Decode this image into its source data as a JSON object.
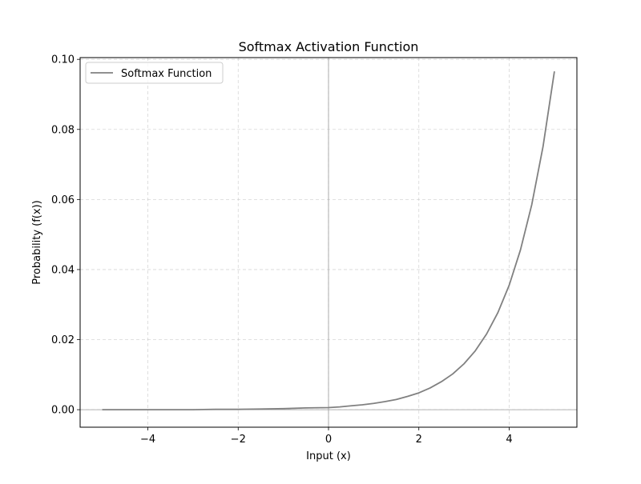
{
  "chart_data": {
    "type": "line",
    "title": "Softmax Activation Function",
    "xlabel": "Input (x)",
    "ylabel": "Probability (f(x))",
    "xlim": [
      -5.5,
      5.5
    ],
    "ylim": [
      -0.005,
      0.1005
    ],
    "x_ticks": [
      -4,
      -2,
      0,
      2,
      4
    ],
    "x_tick_labels": [
      "−4",
      "−2",
      "0",
      "2",
      "4"
    ],
    "y_ticks": [
      0.0,
      0.02,
      0.04,
      0.06,
      0.08,
      0.1
    ],
    "y_tick_labels": [
      "0.00",
      "0.02",
      "0.04",
      "0.06",
      "0.08",
      "0.10"
    ],
    "grid": true,
    "grid_style": "dashed",
    "reference_lines": {
      "x": 0,
      "y": 0
    },
    "legend_placement": "top-left",
    "series": [
      {
        "name": "Softmax Function",
        "color": "#808080",
        "x": [
          -5,
          -4.5,
          -4,
          -3.5,
          -3,
          -2.5,
          -2,
          -1.5,
          -1,
          -0.5,
          0,
          0.25,
          0.5,
          0.75,
          1,
          1.25,
          1.5,
          1.75,
          2,
          2.25,
          2.5,
          2.75,
          3,
          3.25,
          3.5,
          3.75,
          4,
          4.25,
          4.5,
          4.75,
          5
        ],
        "y": [
          0.0,
          0.0,
          0.0,
          0.0,
          0.0,
          0.0001,
          0.0001,
          0.0002,
          0.0003,
          0.0005,
          0.0006,
          0.0008,
          0.0011,
          0.0014,
          0.0018,
          0.0023,
          0.0029,
          0.0038,
          0.0048,
          0.0062,
          0.008,
          0.0102,
          0.0131,
          0.0168,
          0.0216,
          0.0277,
          0.0355,
          0.0456,
          0.0585,
          0.0751,
          0.0964
        ]
      }
    ]
  }
}
